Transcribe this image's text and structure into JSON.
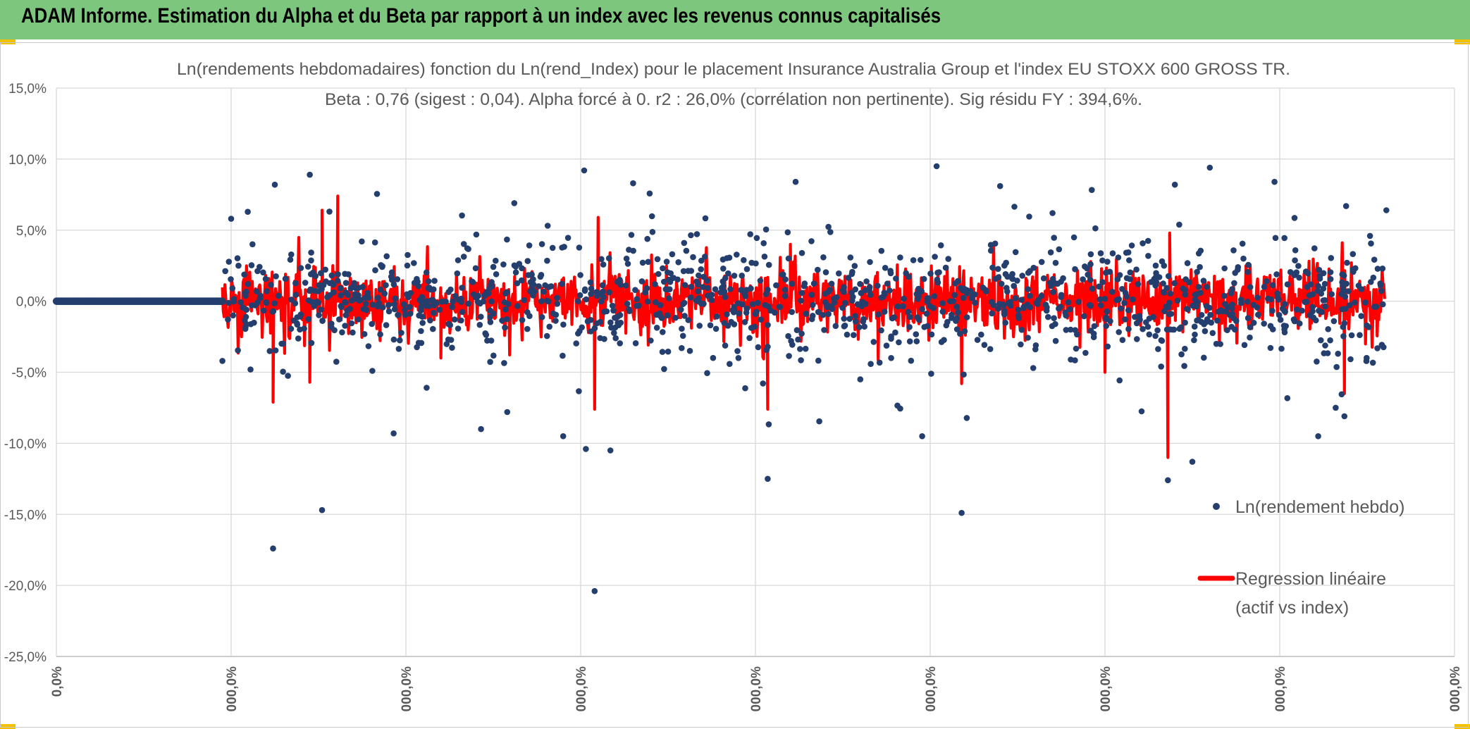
{
  "banner": {
    "title": "ADAM Informe. Estimation du Alpha et du Beta par rapport à un index avec les revenus connus capitalisés",
    "color": "#7dc67d"
  },
  "chart_data": {
    "type": "scatter",
    "title": "Ln(rendements hebdomadaires) fonction du Ln(rend_Index) pour le placement Insurance Australia Group et l'index EU STOXX 600 GROSS TR.",
    "subtitle": "Beta : 0,76 (sigest : 0,04). Alpha forcé à 0. r2 : 26,0% (corrélation non pertinente). Sig résidu FY : 394,6%.",
    "xlabel": "",
    "ylabel": "",
    "y_ticks": [
      "15,0%",
      "10,0%",
      "5,0%",
      "0,0%",
      "-5,0%",
      "-10,0%",
      "-15,0%",
      "-20,0%",
      "-25,0%"
    ],
    "x_ticks": [
      "0,0%",
      "000,0%",
      "000,0%",
      "000,0%",
      "000,0%",
      "000,0%",
      "000,0%",
      "000,0%",
      "000,0%"
    ],
    "ylim": [
      -25,
      15
    ],
    "xlim": [
      0,
      8
    ],
    "grid": true,
    "legend_position": "right",
    "stats": {
      "beta": 0.76,
      "beta_sigest": 0.04,
      "alpha": 0,
      "r2_percent": 26.0,
      "sig_residu_fy_percent": 394.6
    },
    "series": [
      {
        "name": "Ln(rendement hebdo)",
        "kind": "scatter",
        "color": "#243f6e",
        "zero_segment": {
          "x_start": 0,
          "x_end": 0.95,
          "y": 0
        },
        "range": {
          "x_start": 0.95,
          "x_end": 7.6
        },
        "outliers": [
          [
            1.24,
            -17.4
          ],
          [
            1.52,
            -14.7
          ],
          [
            1.93,
            -9.3
          ],
          [
            3.08,
            -20.4
          ],
          [
            3.03,
            -10.4
          ],
          [
            3.17,
            -10.5
          ],
          [
            3.02,
            9.2
          ],
          [
            2.58,
            -7.8
          ],
          [
            2.62,
            6.9
          ],
          [
            4.07,
            -12.5
          ],
          [
            4.23,
            8.4
          ],
          [
            5.18,
            -14.9
          ],
          [
            5.4,
            8.1
          ],
          [
            6.36,
            -12.6
          ],
          [
            6.4,
            8.2
          ],
          [
            6.5,
            -11.3
          ],
          [
            6.6,
            9.4
          ],
          [
            6.97,
            8.4
          ],
          [
            7.32,
            -7.5
          ],
          [
            7.37,
            -8.1
          ],
          [
            7.61,
            6.4
          ],
          [
            1.45,
            8.9
          ],
          [
            1.25,
            8.2
          ],
          [
            2.43,
            -9.0
          ],
          [
            0.95,
            -4.2
          ],
          [
            1.0,
            5.8
          ],
          [
            2.9,
            -9.5
          ],
          [
            3.3,
            8.3
          ],
          [
            4.6,
            -5.5
          ],
          [
            5.7,
            6.2
          ]
        ]
      },
      {
        "name": "Regression linéaire (actif vs index)",
        "kind": "line",
        "color": "#ff0000",
        "spikes": [
          [
            1.24,
            -7.1
          ],
          [
            1.45,
            -5.7
          ],
          [
            1.52,
            6.4
          ],
          [
            1.61,
            7.4
          ],
          [
            3.08,
            -7.6
          ],
          [
            3.1,
            5.9
          ],
          [
            4.07,
            -7.6
          ],
          [
            4.2,
            4.0
          ],
          [
            5.18,
            -5.8
          ],
          [
            6.36,
            -11.0
          ],
          [
            6.37,
            4.8
          ],
          [
            7.37,
            -6.5
          ],
          [
            6.0,
            -5.0
          ],
          [
            2.2,
            -4.0
          ],
          [
            1.85,
            -2.3
          ]
        ]
      }
    ]
  }
}
